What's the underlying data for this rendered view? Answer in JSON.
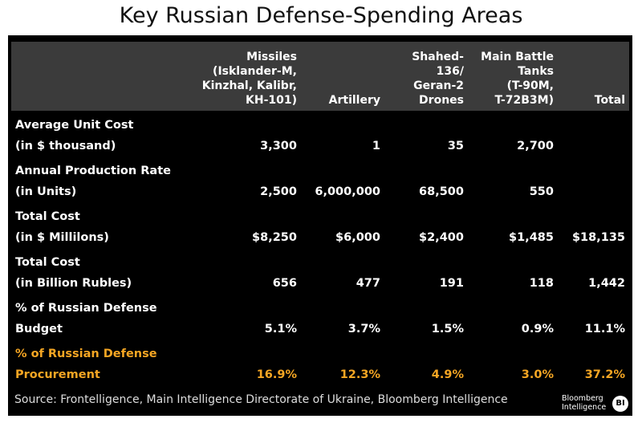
{
  "title": "Key Russian Defense-Spending Areas",
  "columns": [
    "Missiles\n(Isklander-M,\nKinzhal, Kalibr,\nKH-101)",
    "Artillery",
    "Shahed-\n136/\nGeran-2\nDrones",
    "Main Battle\nTanks\n(T-90M,\nT-72B3M)",
    "Total"
  ],
  "rows": [
    {
      "label": "Average Unit Cost\n(in $ thousand)",
      "values": [
        "3,300",
        "1",
        "35",
        "2,700",
        ""
      ]
    },
    {
      "label": "Annual Production Rate\n(in Units)",
      "values": [
        "2,500",
        "6,000,000",
        "68,500",
        "550",
        ""
      ]
    },
    {
      "label": "Total Cost\n(in $ Millilons)",
      "values": [
        "$8,250",
        "$6,000",
        "$2,400",
        "$1,485",
        "$18,135"
      ]
    },
    {
      "label": "Total Cost\n(in Billion Rubles)",
      "values": [
        "656",
        "477",
        "191",
        "118",
        "1,442"
      ]
    },
    {
      "label": "% of Russian Defense\nBudget",
      "values": [
        "5.1%",
        "3.7%",
        "1.5%",
        "0.9%",
        "11.1%"
      ]
    },
    {
      "label": "% of Russian Defense\nProcurement",
      "values": [
        "16.9%",
        "12.3%",
        "4.9%",
        "3.0%",
        "37.2%"
      ],
      "highlight": true
    }
  ],
  "source": "Source: Frontelligence, Main Intelligence Directorate of Ukraine, Bloomberg Intelligence",
  "logo": "Bloomberg Intelligence",
  "logo_badge": "BI",
  "colors": {
    "highlight": "#f5a623",
    "header": "#3b3b3b",
    "background": "#000000"
  }
}
